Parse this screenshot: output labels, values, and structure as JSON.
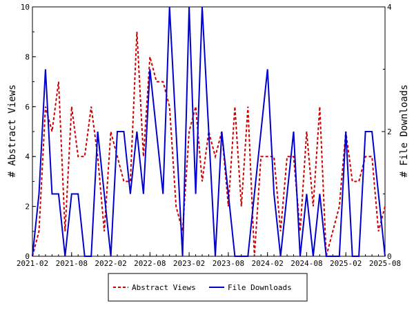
{
  "chart_data": {
    "type": "line",
    "x_ticks": [
      "2021-02",
      "2021-08",
      "2022-02",
      "2022-08",
      "2023-02",
      "2023-08",
      "2024-02",
      "2024-08",
      "2025-02",
      "2025-08"
    ],
    "x_range": [
      "2021-02",
      "2025-08"
    ],
    "y_left": {
      "label": "# Abstract Views",
      "range": [
        0,
        10
      ],
      "ticks": [
        0,
        2,
        4,
        6,
        8,
        10
      ]
    },
    "y_right": {
      "label": "# File Downloads",
      "range": [
        0,
        4
      ],
      "ticks": [
        0,
        2,
        4
      ]
    },
    "legend_position": "bottom",
    "grid": false,
    "series": [
      {
        "name": "Abstract Views",
        "axis": "left",
        "color": "#cc0000",
        "style": "dashed",
        "x": [
          "2021-02",
          "2021-03",
          "2021-04",
          "2021-05",
          "2021-06",
          "2021-07",
          "2021-08",
          "2021-09",
          "2021-10",
          "2021-11",
          "2021-12",
          "2022-01",
          "2022-02",
          "2022-03",
          "2022-04",
          "2022-05",
          "2022-06",
          "2022-07",
          "2022-08",
          "2022-09",
          "2022-10",
          "2022-11",
          "2022-12",
          "2023-01",
          "2023-02",
          "2023-03",
          "2023-04",
          "2023-05",
          "2023-06",
          "2023-07",
          "2023-08",
          "2023-09",
          "2023-10",
          "2023-11",
          "2023-12",
          "2024-01",
          "2024-02",
          "2024-03",
          "2024-04",
          "2024-05",
          "2024-06",
          "2024-07",
          "2024-08",
          "2024-09",
          "2024-10",
          "2024-11",
          "2024-12",
          "2025-01",
          "2025-02",
          "2025-03",
          "2025-04",
          "2025-05",
          "2025-06",
          "2025-07",
          "2025-08"
        ],
        "values": [
          0,
          1,
          6,
          5,
          7,
          1,
          6,
          4,
          4,
          6,
          4,
          1,
          5,
          4,
          3,
          3,
          9,
          4,
          8,
          7,
          7,
          6,
          2,
          1,
          5,
          6,
          3,
          5,
          4,
          5,
          2,
          6,
          2,
          6,
          0,
          4,
          4,
          4,
          1,
          4,
          4,
          1,
          5,
          2,
          6,
          0,
          1,
          2,
          5,
          3,
          3,
          4,
          4,
          1,
          2
        ]
      },
      {
        "name": "File Downloads",
        "axis": "right",
        "color": "#0000cc",
        "style": "solid",
        "x": [
          "2021-02",
          "2021-03",
          "2021-04",
          "2021-05",
          "2021-06",
          "2021-07",
          "2021-08",
          "2021-09",
          "2021-10",
          "2021-11",
          "2021-12",
          "2022-01",
          "2022-02",
          "2022-03",
          "2022-04",
          "2022-05",
          "2022-06",
          "2022-07",
          "2022-08",
          "2022-09",
          "2022-10",
          "2022-11",
          "2022-12",
          "2023-01",
          "2023-02",
          "2023-03",
          "2023-04",
          "2023-05",
          "2023-06",
          "2023-07",
          "2023-08",
          "2023-09",
          "2023-10",
          "2023-11",
          "2023-12",
          "2024-01",
          "2024-02",
          "2024-03",
          "2024-04",
          "2024-05",
          "2024-06",
          "2024-07",
          "2024-08",
          "2024-09",
          "2024-10",
          "2024-11",
          "2024-12",
          "2025-01",
          "2025-02",
          "2025-03",
          "2025-04",
          "2025-05",
          "2025-06",
          "2025-07",
          "2025-08"
        ],
        "values": [
          0,
          1,
          3,
          1,
          1,
          0,
          1,
          1,
          0,
          0,
          2,
          1,
          0,
          2,
          2,
          1,
          2,
          1,
          3,
          2,
          1,
          4,
          2,
          0,
          4,
          1,
          4,
          2,
          0,
          2,
          1,
          0,
          0,
          0,
          1,
          2,
          3,
          1,
          0,
          1,
          2,
          0,
          1,
          0,
          1,
          0,
          0,
          0,
          2,
          0,
          0,
          2,
          2,
          1,
          0
        ]
      }
    ]
  }
}
